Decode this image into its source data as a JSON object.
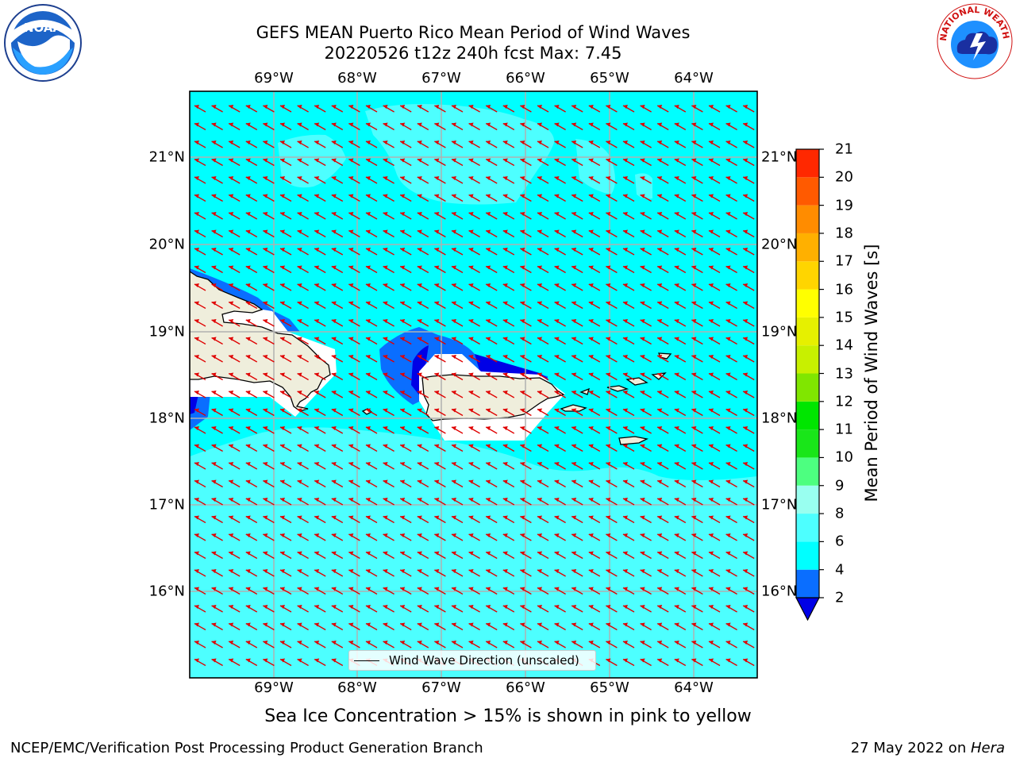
{
  "title_line1": "GEFS MEAN Puerto Rico Mean Period of Wind Waves",
  "title_line2": "20220526 t12z 240h fcst   Max: 7.45",
  "lon_ticks": [
    "69°W",
    "68°W",
    "67°W",
    "66°W",
    "65°W",
    "64°W"
  ],
  "lat_ticks": [
    "21°N",
    "20°N",
    "19°N",
    "18°N",
    "17°N",
    "16°N"
  ],
  "legend_label": "Wind Wave Direction (unscaled)",
  "colorbar": {
    "label": "Mean Period of Wind Waves [s]",
    "ticks": [
      "2",
      "4",
      "6",
      "8",
      "9",
      "10",
      "11",
      "12",
      "13",
      "14",
      "15",
      "16",
      "17",
      "18",
      "19",
      "20",
      "21"
    ],
    "colors": [
      "#0000e6",
      "#0a6eff",
      "#00ffff",
      "#4dffff",
      "#99fff0",
      "#4dff80",
      "#19e619",
      "#00e600",
      "#80e600",
      "#c8f000",
      "#e6f000",
      "#ffff00",
      "#ffd500",
      "#ffb000",
      "#ff8c00",
      "#ff5a00",
      "#ff2800",
      "#ff0000"
    ]
  },
  "map": {
    "colors": {
      "ocean_main": "#00ffff",
      "ocean_light": "#4dffff",
      "ocean_blue": "#0a6eff",
      "ocean_dark": "#0000e6",
      "land": "#efeedc",
      "arrow": "#e00000",
      "grid": "#b0b0b0"
    }
  },
  "ice_note": "Sea Ice Concentration > 15% is shown in pink to yellow",
  "footer_left": "NCEP/EMC/Verification Post Processing Product Generation Branch",
  "footer_right_prefix": "27 May 2022 on ",
  "footer_right_host": "Hera",
  "logos": {
    "left": "NOAA",
    "right": "NATIONAL WEATHER SERVICE"
  }
}
